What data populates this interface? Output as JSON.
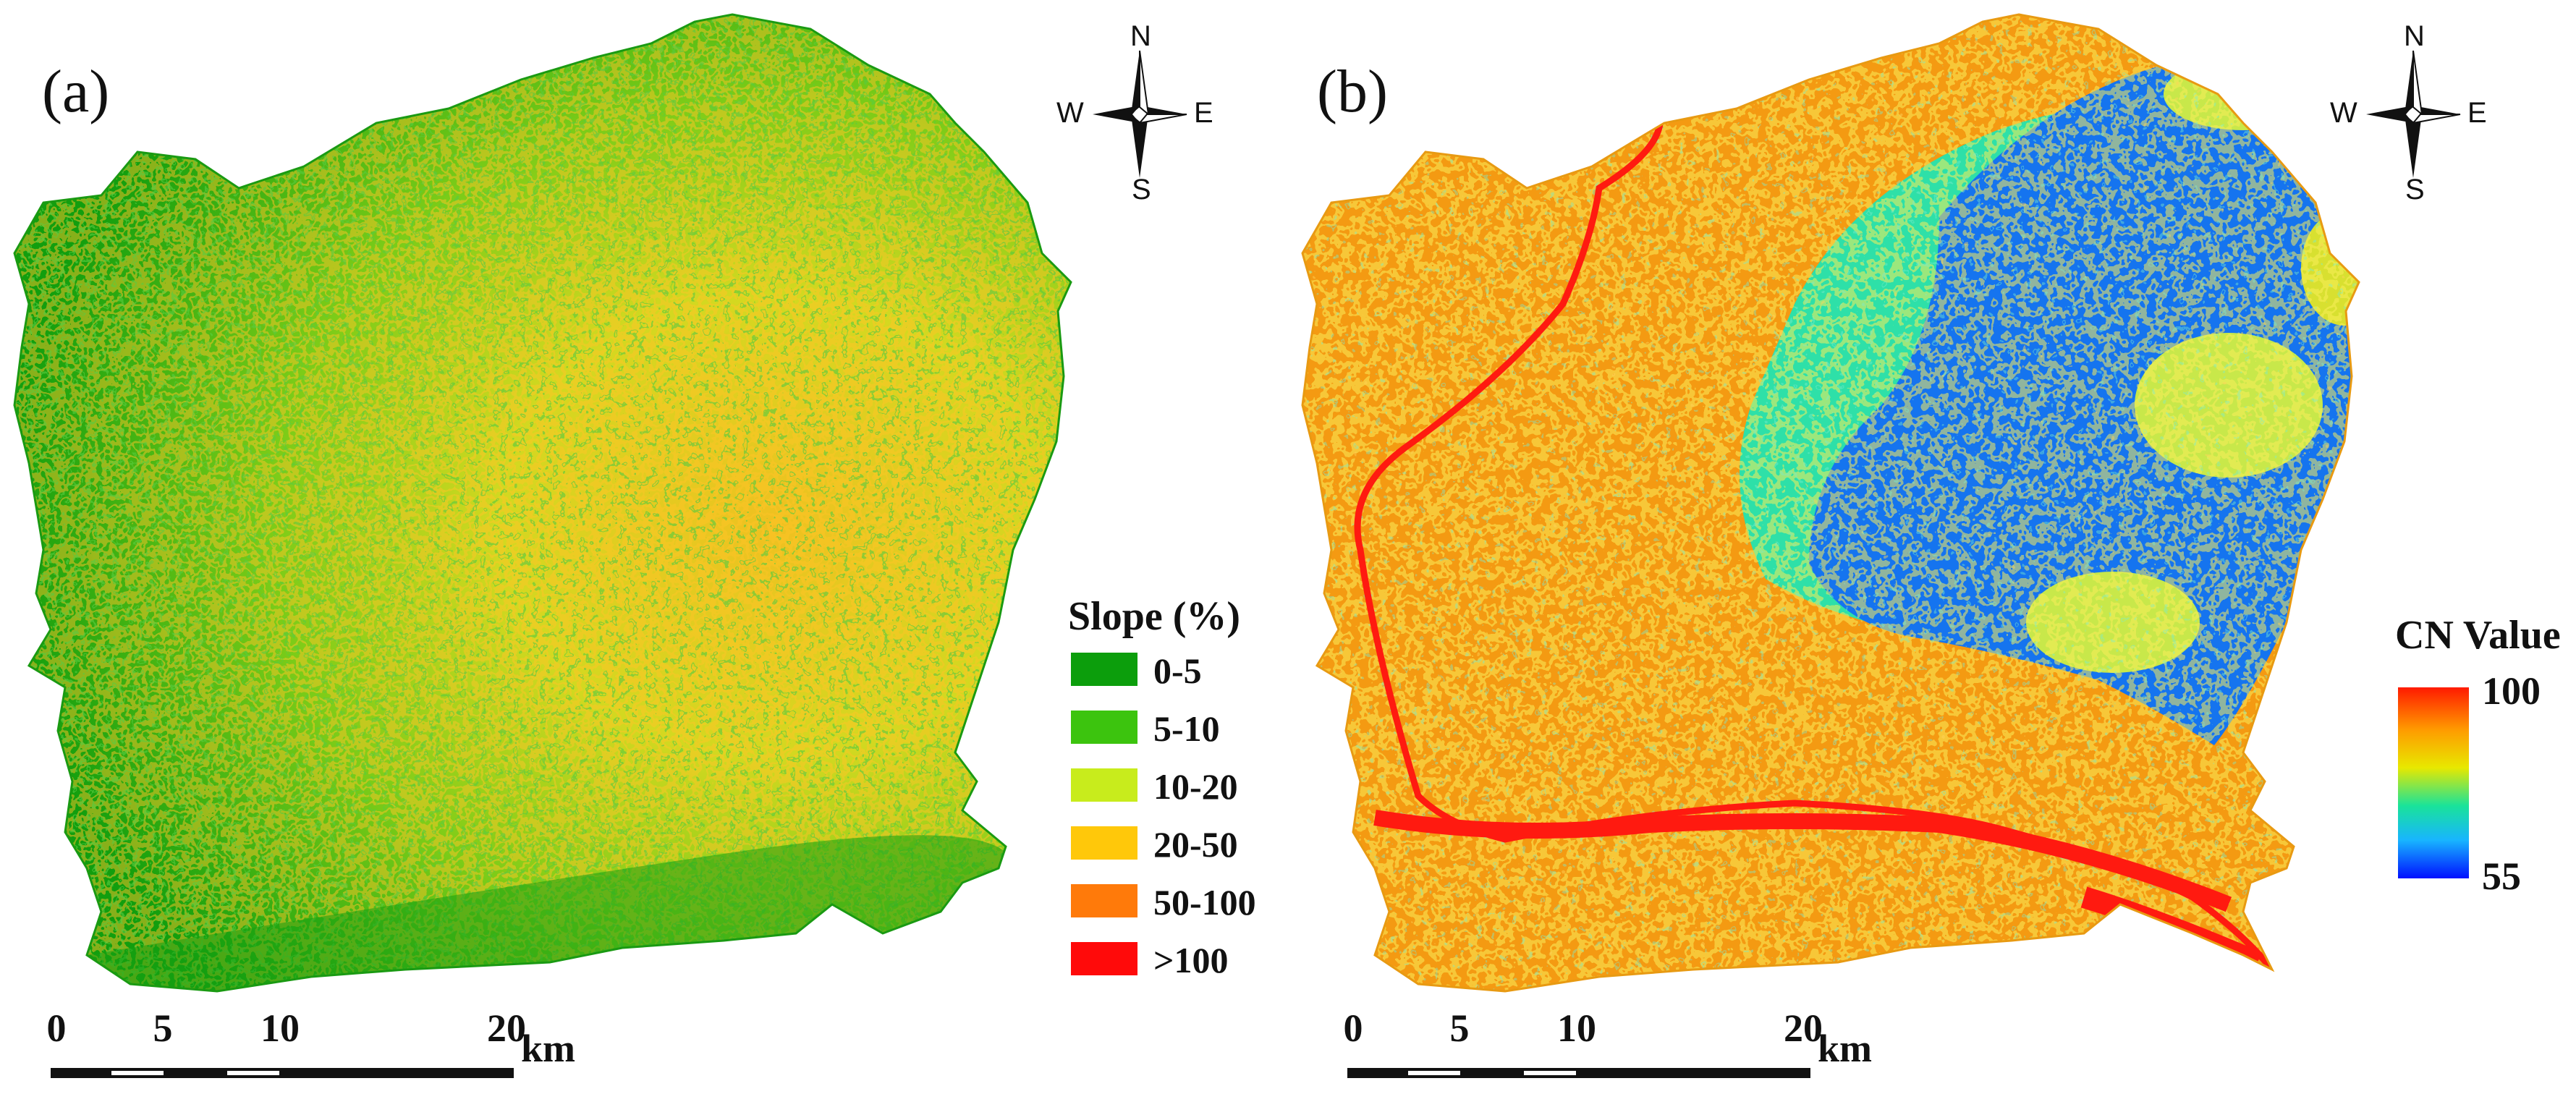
{
  "panel_a": {
    "label": "(a)",
    "compass": {
      "n": "N",
      "s": "S",
      "e": "E",
      "w": "W"
    },
    "legend": {
      "title": "Slope (%)",
      "items": [
        {
          "label": "0-5",
          "color": "#0c9e0c"
        },
        {
          "label": "5-10",
          "color": "#3cc40e"
        },
        {
          "label": "10-20",
          "color": "#c8ec1c"
        },
        {
          "label": "20-50",
          "color": "#ffc80a"
        },
        {
          "label": "50-100",
          "color": "#ff7a0a"
        },
        {
          "label": ">100",
          "color": "#ff0a0a"
        }
      ]
    },
    "scalebar": {
      "ticks": [
        "0",
        "5",
        "10",
        "20"
      ],
      "unit": "km"
    }
  },
  "panel_b": {
    "label": "(b)",
    "compass": {
      "n": "N",
      "s": "S",
      "e": "E",
      "w": "W"
    },
    "legend": {
      "title": "CN Value",
      "max": "100",
      "min": "55"
    },
    "scalebar": {
      "ticks": [
        "0",
        "5",
        "10",
        "20"
      ],
      "unit": "km"
    }
  }
}
